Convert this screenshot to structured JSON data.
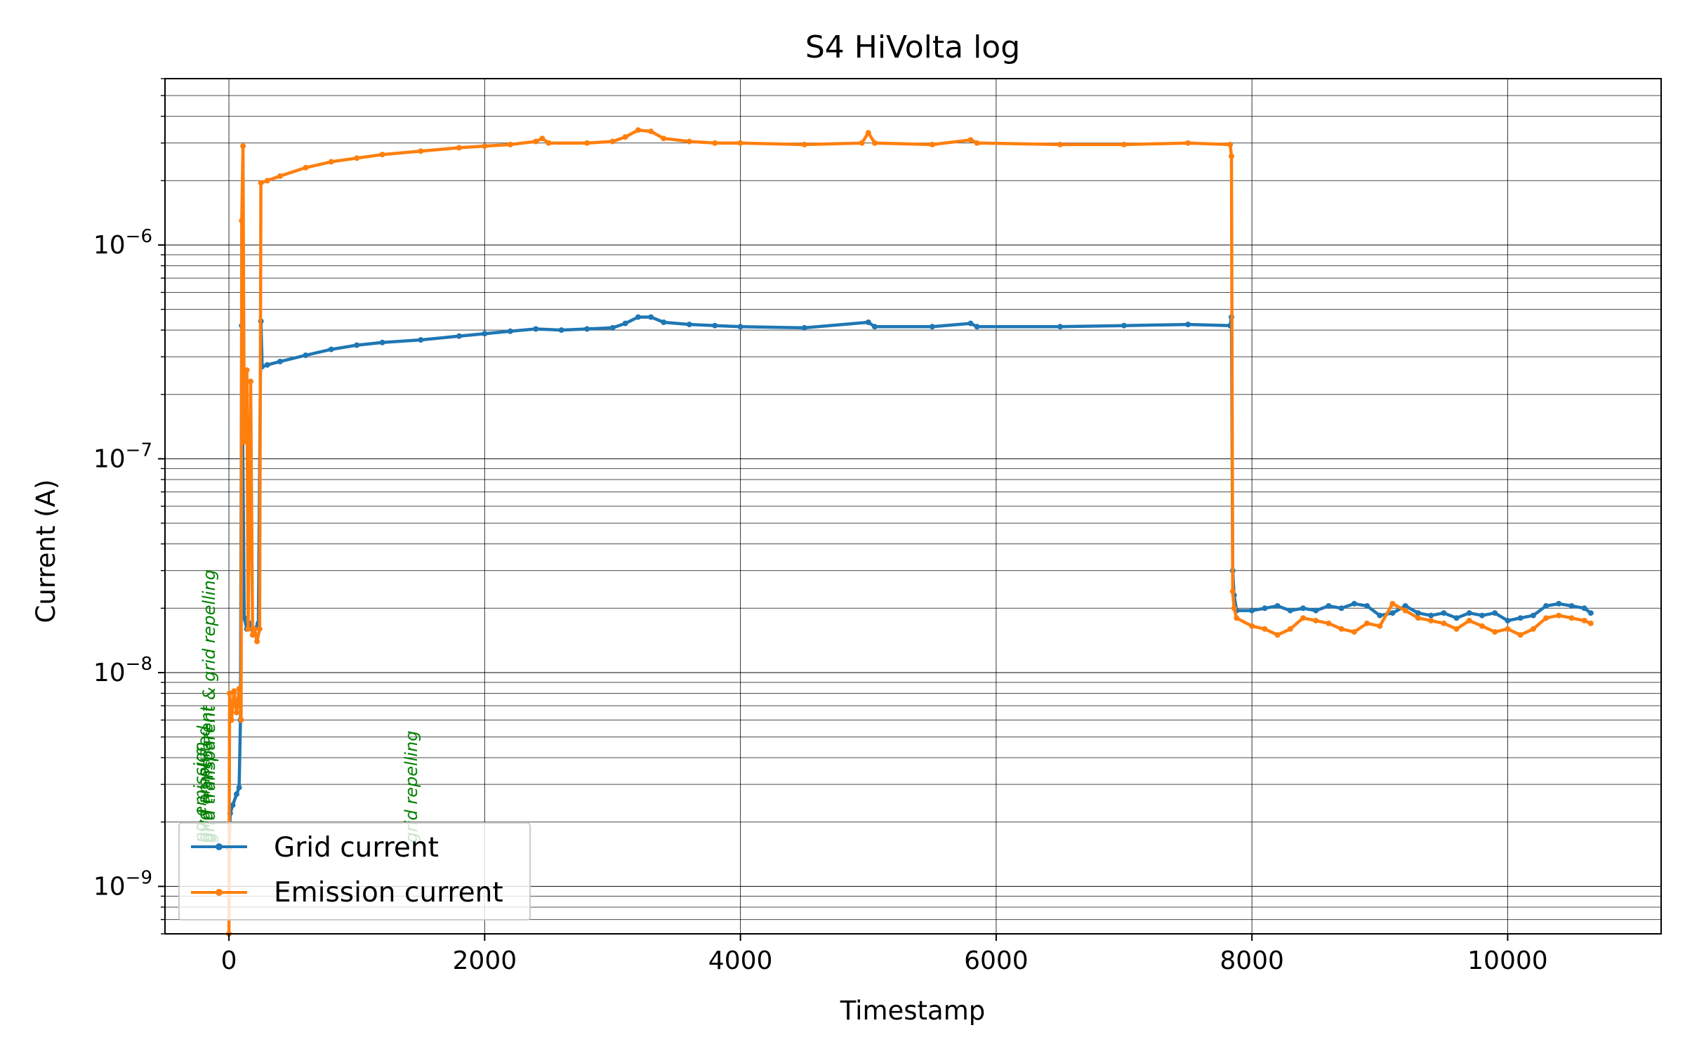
{
  "chart_data": {
    "type": "line",
    "title": "S4 HiVolta log",
    "xlabel": "Timestamp",
    "ylabel": "Current (A)",
    "xlim": [
      -500,
      11200
    ],
    "ylim": [
      6e-10,
      6e-06
    ],
    "yscale": "log",
    "grid": true,
    "legend_position": "lower-left",
    "x_ticks": [
      {
        "value": 0,
        "label": "0"
      },
      {
        "value": 2000,
        "label": "2000"
      },
      {
        "value": 4000,
        "label": "4000"
      },
      {
        "value": 6000,
        "label": "6000"
      },
      {
        "value": 8000,
        "label": "8000"
      },
      {
        "value": 10000,
        "label": "10000"
      }
    ],
    "y_ticks": [
      {
        "value": 1e-09,
        "base": "10",
        "exp": "−9"
      },
      {
        "value": 1e-08,
        "base": "10",
        "exp": "−8"
      },
      {
        "value": 1e-07,
        "base": "10",
        "exp": "−7"
      },
      {
        "value": 1e-06,
        "base": "10",
        "exp": "−6"
      }
    ],
    "series": [
      {
        "name": "Grid current",
        "color": "#1f77b4",
        "points": [
          [
            0,
            1.5e-09
          ],
          [
            10,
            2.2e-09
          ],
          [
            30,
            2.4e-09
          ],
          [
            60,
            2.7e-09
          ],
          [
            80,
            2.9e-09
          ],
          [
            90,
            6e-09
          ],
          [
            100,
            4.2e-07
          ],
          [
            120,
            1.8e-08
          ],
          [
            140,
            1.6e-08
          ],
          [
            160,
            1.7e-08
          ],
          [
            180,
            1.6e-08
          ],
          [
            200,
            1.6e-08
          ],
          [
            230,
            1.7e-08
          ],
          [
            250,
            4.4e-07
          ],
          [
            260,
            2.7e-07
          ],
          [
            300,
            2.75e-07
          ],
          [
            400,
            2.85e-07
          ],
          [
            600,
            3.05e-07
          ],
          [
            800,
            3.25e-07
          ],
          [
            1000,
            3.4e-07
          ],
          [
            1200,
            3.5e-07
          ],
          [
            1500,
            3.6e-07
          ],
          [
            1800,
            3.75e-07
          ],
          [
            2000,
            3.85e-07
          ],
          [
            2200,
            3.95e-07
          ],
          [
            2400,
            4.05e-07
          ],
          [
            2600,
            4e-07
          ],
          [
            2800,
            4.05e-07
          ],
          [
            3000,
            4.1e-07
          ],
          [
            3100,
            4.3e-07
          ],
          [
            3200,
            4.6e-07
          ],
          [
            3300,
            4.6e-07
          ],
          [
            3400,
            4.35e-07
          ],
          [
            3600,
            4.25e-07
          ],
          [
            3800,
            4.2e-07
          ],
          [
            4000,
            4.15e-07
          ],
          [
            4500,
            4.1e-07
          ],
          [
            5000,
            4.35e-07
          ],
          [
            5050,
            4.15e-07
          ],
          [
            5500,
            4.15e-07
          ],
          [
            5800,
            4.3e-07
          ],
          [
            5850,
            4.15e-07
          ],
          [
            6500,
            4.15e-07
          ],
          [
            7000,
            4.2e-07
          ],
          [
            7500,
            4.25e-07
          ],
          [
            7830,
            4.2e-07
          ],
          [
            7840,
            4.6e-07
          ],
          [
            7850,
            3e-08
          ],
          [
            7860,
            2.3e-08
          ],
          [
            7880,
            1.95e-08
          ],
          [
            8000,
            1.95e-08
          ],
          [
            8100,
            2e-08
          ],
          [
            8200,
            2.05e-08
          ],
          [
            8300,
            1.95e-08
          ],
          [
            8400,
            2e-08
          ],
          [
            8500,
            1.95e-08
          ],
          [
            8600,
            2.05e-08
          ],
          [
            8700,
            2e-08
          ],
          [
            8800,
            2.1e-08
          ],
          [
            8900,
            2.05e-08
          ],
          [
            9000,
            1.85e-08
          ],
          [
            9100,
            1.9e-08
          ],
          [
            9200,
            2.05e-08
          ],
          [
            9300,
            1.9e-08
          ],
          [
            9400,
            1.85e-08
          ],
          [
            9500,
            1.9e-08
          ],
          [
            9600,
            1.8e-08
          ],
          [
            9700,
            1.9e-08
          ],
          [
            9800,
            1.85e-08
          ],
          [
            9900,
            1.9e-08
          ],
          [
            10000,
            1.75e-08
          ],
          [
            10100,
            1.8e-08
          ],
          [
            10200,
            1.85e-08
          ],
          [
            10300,
            2.05e-08
          ],
          [
            10400,
            2.1e-08
          ],
          [
            10500,
            2.05e-08
          ],
          [
            10600,
            2e-08
          ],
          [
            10650,
            1.9e-08
          ]
        ]
      },
      {
        "name": "Emission current",
        "color": "#ff7f0e",
        "points": [
          [
            0,
            6e-10
          ],
          [
            5,
            8e-09
          ],
          [
            20,
            6e-09
          ],
          [
            40,
            8.2e-09
          ],
          [
            60,
            6.5e-09
          ],
          [
            80,
            8.4e-09
          ],
          [
            95,
            6e-09
          ],
          [
            100,
            1.3e-06
          ],
          [
            110,
            2.9e-06
          ],
          [
            120,
            1.2e-07
          ],
          [
            130,
            2.5e-07
          ],
          [
            140,
            2.6e-07
          ],
          [
            150,
            1.6e-08
          ],
          [
            170,
            2.3e-07
          ],
          [
            185,
            1.5e-08
          ],
          [
            200,
            1.6e-08
          ],
          [
            220,
            1.4e-08
          ],
          [
            240,
            1.6e-08
          ],
          [
            250,
            1.95e-06
          ],
          [
            300,
            2e-06
          ],
          [
            400,
            2.1e-06
          ],
          [
            600,
            2.3e-06
          ],
          [
            800,
            2.45e-06
          ],
          [
            1000,
            2.55e-06
          ],
          [
            1200,
            2.65e-06
          ],
          [
            1500,
            2.75e-06
          ],
          [
            1800,
            2.85e-06
          ],
          [
            2000,
            2.9e-06
          ],
          [
            2200,
            2.95e-06
          ],
          [
            2400,
            3.05e-06
          ],
          [
            2450,
            3.15e-06
          ],
          [
            2500,
            3e-06
          ],
          [
            2800,
            3e-06
          ],
          [
            3000,
            3.05e-06
          ],
          [
            3100,
            3.2e-06
          ],
          [
            3200,
            3.45e-06
          ],
          [
            3300,
            3.4e-06
          ],
          [
            3400,
            3.15e-06
          ],
          [
            3600,
            3.05e-06
          ],
          [
            3800,
            3e-06
          ],
          [
            4000,
            3e-06
          ],
          [
            4500,
            2.95e-06
          ],
          [
            4950,
            3e-06
          ],
          [
            5000,
            3.35e-06
          ],
          [
            5050,
            3e-06
          ],
          [
            5500,
            2.95e-06
          ],
          [
            5800,
            3.1e-06
          ],
          [
            5850,
            3e-06
          ],
          [
            6500,
            2.95e-06
          ],
          [
            7000,
            2.95e-06
          ],
          [
            7500,
            3e-06
          ],
          [
            7830,
            2.95e-06
          ],
          [
            7840,
            2.6e-06
          ],
          [
            7850,
            2.4e-08
          ],
          [
            7860,
            2e-08
          ],
          [
            7880,
            1.8e-08
          ],
          [
            8000,
            1.65e-08
          ],
          [
            8100,
            1.6e-08
          ],
          [
            8200,
            1.5e-08
          ],
          [
            8300,
            1.6e-08
          ],
          [
            8400,
            1.8e-08
          ],
          [
            8500,
            1.75e-08
          ],
          [
            8600,
            1.7e-08
          ],
          [
            8700,
            1.6e-08
          ],
          [
            8800,
            1.55e-08
          ],
          [
            8900,
            1.7e-08
          ],
          [
            9000,
            1.65e-08
          ],
          [
            9100,
            2.1e-08
          ],
          [
            9200,
            1.95e-08
          ],
          [
            9300,
            1.8e-08
          ],
          [
            9400,
            1.75e-08
          ],
          [
            9500,
            1.7e-08
          ],
          [
            9600,
            1.6e-08
          ],
          [
            9700,
            1.75e-08
          ],
          [
            9800,
            1.65e-08
          ],
          [
            9900,
            1.55e-08
          ],
          [
            10000,
            1.6e-08
          ],
          [
            10100,
            1.5e-08
          ],
          [
            10200,
            1.6e-08
          ],
          [
            10300,
            1.8e-08
          ],
          [
            10400,
            1.85e-08
          ],
          [
            10500,
            1.8e-08
          ],
          [
            10600,
            1.75e-08
          ],
          [
            10650,
            1.7e-08
          ]
        ]
      }
    ],
    "annotations": [
      {
        "text": "no emission",
        "x": -180,
        "y": 1.6e-09,
        "color": "green"
      },
      {
        "text": "gird amplified",
        "x": -150,
        "y": 1.6e-09,
        "color": "green"
      },
      {
        "text": "grid transparent",
        "x": -130,
        "y": 1.6e-09,
        "color": "green"
      },
      {
        "text": "grid transparent & grid repelling",
        "x": -110,
        "y": 1.6e-09,
        "color": "green"
      },
      {
        "text": "grid repelling",
        "x": 1470,
        "y": 1.6e-09,
        "color": "green"
      }
    ]
  }
}
